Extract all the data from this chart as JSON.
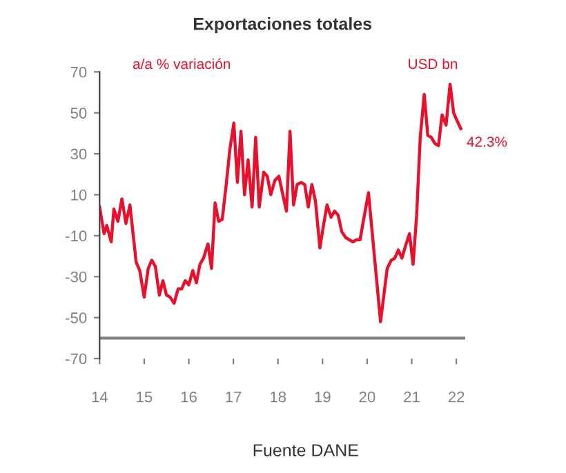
{
  "chart_data": {
    "type": "line",
    "title": "Exportaciones totales",
    "x": [
      14.0,
      14.1,
      14.16,
      14.26,
      14.32,
      14.41,
      14.5,
      14.59,
      14.68,
      14.82,
      14.9,
      15.0,
      15.09,
      15.17,
      15.25,
      15.34,
      15.42,
      15.5,
      15.58,
      15.67,
      15.76,
      15.84,
      15.92,
      16.0,
      16.09,
      16.17,
      16.25,
      16.33,
      16.43,
      16.51,
      16.59,
      16.67,
      16.75,
      16.84,
      16.92,
      17.01,
      17.09,
      17.17,
      17.25,
      17.33,
      17.42,
      17.5,
      17.58,
      17.68,
      17.76,
      17.84,
      17.93,
      18.02,
      18.1,
      18.19,
      18.27,
      18.35,
      18.43,
      18.52,
      18.6,
      18.68,
      18.76,
      18.84,
      18.94,
      19.02,
      19.1,
      19.19,
      19.27,
      19.35,
      19.43,
      19.52,
      19.6,
      19.68,
      19.76,
      19.84,
      20.03,
      20.3,
      20.45,
      20.54,
      20.62,
      20.7,
      20.78,
      20.86,
      20.95,
      21.03,
      21.11,
      21.19,
      21.28,
      21.36,
      21.44,
      21.52,
      21.6,
      21.68,
      21.77,
      21.86,
      21.94,
      22.02,
      22.1
    ],
    "series": [
      {
        "color": "#e8112d",
        "values": [
          4,
          -9,
          -5,
          -13,
          3,
          -3,
          8,
          -4,
          5,
          -23,
          -27,
          -40,
          -26,
          -22,
          -25,
          -39,
          -32,
          -39,
          -40,
          -43,
          -36,
          -36,
          -32,
          -34,
          -27,
          -33,
          -24,
          -21,
          -14,
          -26,
          6,
          -3,
          -2,
          15,
          32,
          45,
          16,
          41,
          10,
          27,
          4,
          38,
          4,
          21,
          19,
          10,
          17,
          19,
          11,
          2,
          41,
          5,
          15,
          16,
          15,
          4,
          15,
          7,
          -16,
          -5,
          5,
          -1,
          2,
          0,
          -8,
          -11,
          -12,
          -13,
          -12,
          -12,
          11,
          -52,
          -26,
          -22,
          -21,
          -17,
          -21,
          -15,
          -9,
          -24,
          0,
          38,
          59,
          39,
          38,
          35,
          34,
          49,
          44,
          64,
          50,
          46,
          42.3
        ]
      }
    ],
    "ylim": [
      -70,
      70
    ],
    "yticks": [
      -70,
      -50,
      -30,
      -10,
      10,
      30,
      50,
      70
    ],
    "xlim": [
      14,
      22.2
    ],
    "xticks": [
      14,
      15,
      16,
      17,
      18,
      19,
      20,
      21,
      22
    ],
    "grid": false,
    "legend": false,
    "marker": "none",
    "line_style": "solid",
    "ref_lines": [
      {
        "axis": "y",
        "value": -60,
        "color": "#808080"
      }
    ],
    "annotations": [
      "a/a % variación",
      "USD bn",
      {
        "text": "42.3%",
        "x": 22.1,
        "y": 42.3
      },
      "Fuente DANE"
    ]
  }
}
